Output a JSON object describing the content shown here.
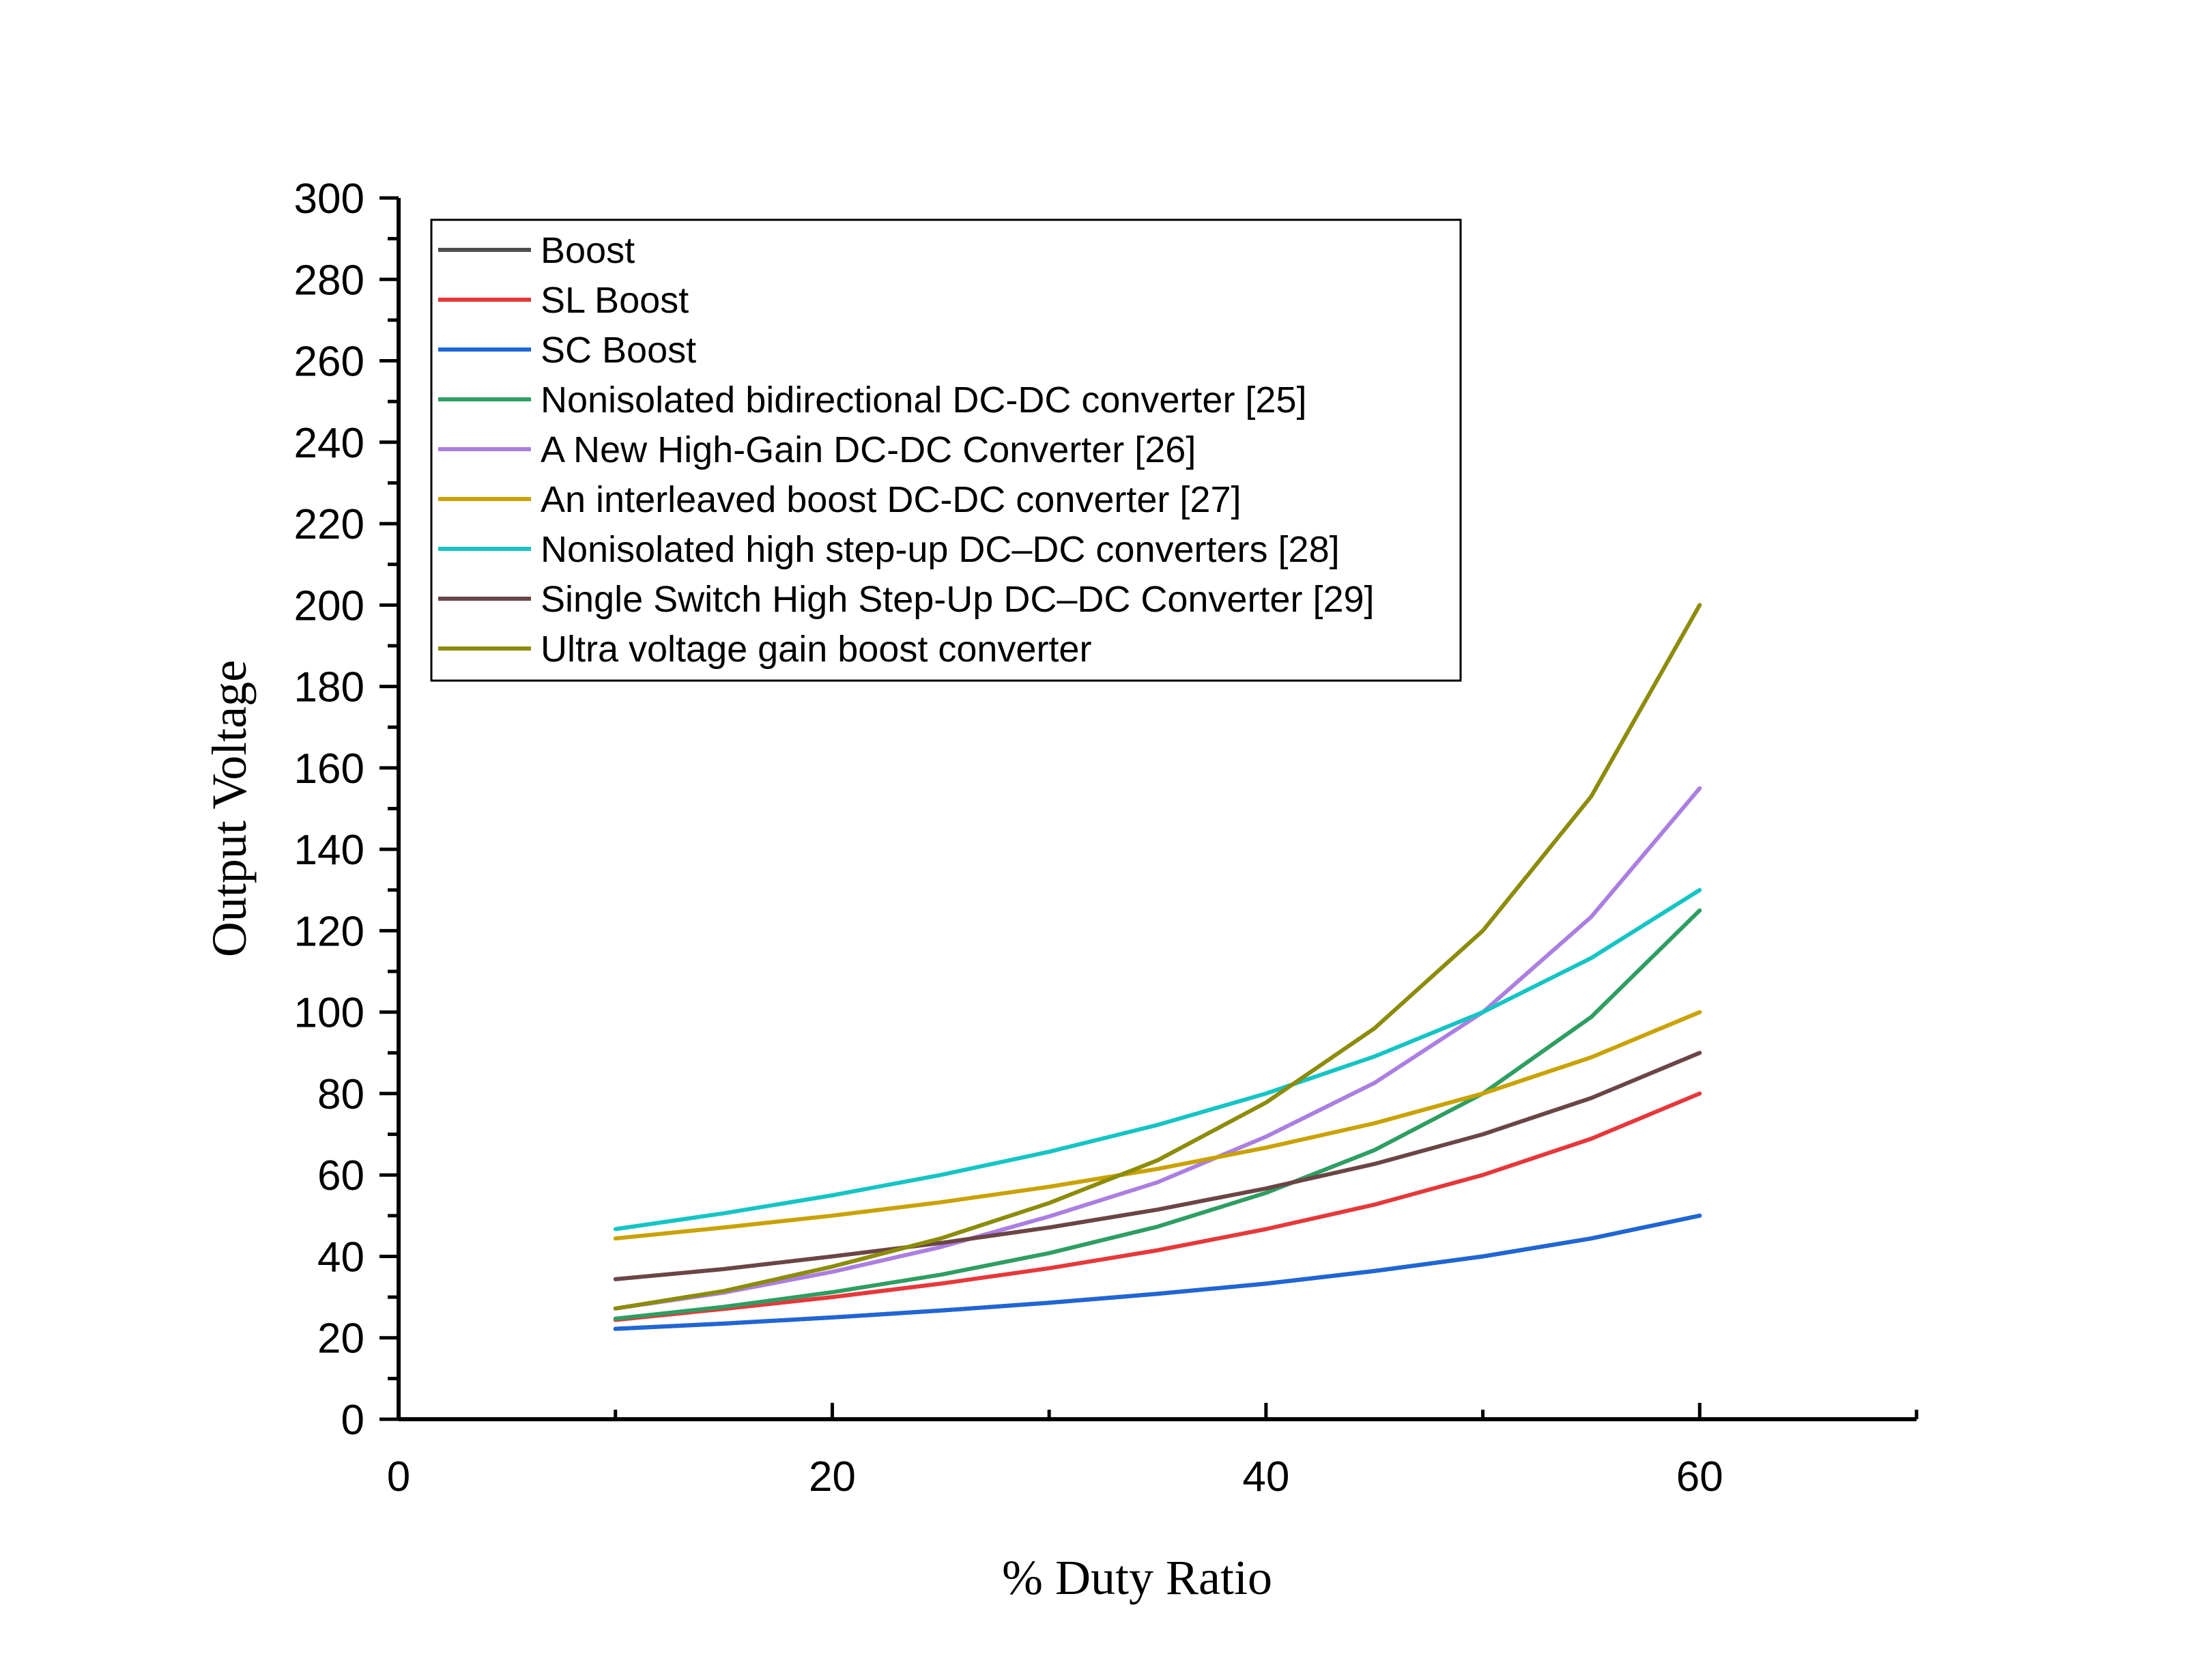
{
  "chart_data": {
    "type": "line",
    "title": "",
    "xlabel": "% Duty Ratio",
    "ylabel": "Output Voltage",
    "xlim": [
      0,
      70
    ],
    "ylim": [
      0,
      300
    ],
    "x_ticks": [
      0,
      20,
      40,
      60
    ],
    "y_ticks": [
      0,
      20,
      40,
      60,
      80,
      100,
      120,
      140,
      160,
      180,
      200,
      220,
      240,
      260,
      280,
      300
    ],
    "grid": false,
    "legend_position": "top-left",
    "x": [
      10,
      15,
      20,
      25,
      30,
      35,
      40,
      45,
      50,
      55,
      60
    ],
    "series": [
      {
        "name": "Boost",
        "color": "#4d4d4d",
        "values": [
          22.2,
          23.5,
          25,
          26.7,
          28.6,
          30.8,
          33.3,
          36.4,
          40,
          44.4,
          50
        ]
      },
      {
        "name": "SL Boost",
        "color": "#e6383b",
        "values": [
          24.4,
          27.1,
          30,
          33.3,
          37.1,
          41.5,
          46.7,
          52.7,
          60,
          68.9,
          80
        ]
      },
      {
        "name": "SC Boost",
        "color": "#1f66d6",
        "values": [
          22.2,
          23.5,
          25,
          26.7,
          28.6,
          30.8,
          33.3,
          36.4,
          40,
          44.4,
          50
        ]
      },
      {
        "name": "Nonisolated bidirectional DC-DC converter [25]",
        "color": "#2e9e62",
        "values": [
          24.7,
          27.6,
          31.2,
          35.5,
          40.8,
          47.3,
          55.6,
          66.1,
          80,
          98.8,
          125
        ]
      },
      {
        "name": "A New High-Gain DC-DC Converter [26]",
        "color": "#ab7fe0",
        "values": [
          27.2,
          31.1,
          36.2,
          42.3,
          49.8,
          58.2,
          69.4,
          82.6,
          100,
          123.4,
          155
        ]
      },
      {
        "name": "An interleaved boost DC-DC converter [27]",
        "color": "#c9a200",
        "values": [
          44.4,
          47.1,
          50,
          53.3,
          57.1,
          61.5,
          66.7,
          72.7,
          80,
          88.9,
          100
        ]
      },
      {
        "name": "Nonisolated high step-up DC–DC converters [28]",
        "color": "#15c4c4",
        "values": [
          46.7,
          50.6,
          55,
          60,
          65.7,
          72.3,
          80,
          89.1,
          100,
          113.3,
          130
        ]
      },
      {
        "name": "Single Switch High Step-Up DC–DC Converter [29]",
        "color": "#6b4545",
        "values": [
          34.4,
          36.9,
          40,
          43.3,
          47.1,
          51.5,
          56.7,
          62.7,
          70,
          78.9,
          90
        ]
      },
      {
        "name": "Ultra voltage gain boost converter",
        "color": "#8c8c0a",
        "values": [
          27.2,
          31.5,
          37.5,
          44.4,
          53.1,
          63.6,
          77.8,
          96,
          120,
          153,
          200
        ]
      }
    ]
  }
}
